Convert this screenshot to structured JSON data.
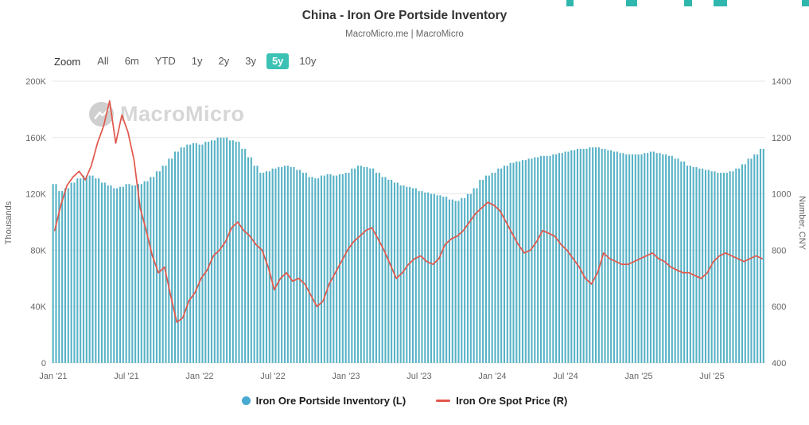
{
  "header": {
    "title": "China - Iron Ore Portside Inventory",
    "subtitle": "MacroMicro.me | MacroMicro"
  },
  "toolbar": {
    "zoom_label": "Zoom",
    "ranges": [
      "All",
      "6m",
      "YTD",
      "1y",
      "2y",
      "3y",
      "5y",
      "10y"
    ],
    "selected": "5y",
    "selected_bg": "#3cc2b5"
  },
  "watermark": {
    "text": "MacroMicro"
  },
  "legend": [
    {
      "label": "Iron Ore Portside Inventory (L)",
      "marker": "circle",
      "color": "#48a9d1"
    },
    {
      "label": "Iron Ore Spot Price (R)",
      "marker": "line",
      "color": "#e2564a"
    }
  ],
  "chart_data": {
    "type": "bar",
    "title": "China - Iron Ore Portside Inventory",
    "x_unit": "semi-monthly samples, Jan 2021 - Nov 2025",
    "x_ticks": [
      {
        "label": "Jan '21",
        "index": 0
      },
      {
        "label": "Jul '21",
        "index": 12
      },
      {
        "label": "Jan '22",
        "index": 24
      },
      {
        "label": "Jul '22",
        "index": 36
      },
      {
        "label": "Jan '23",
        "index": 48
      },
      {
        "label": "Jul '23",
        "index": 60
      },
      {
        "label": "Jan '24",
        "index": 72
      },
      {
        "label": "Jul '24",
        "index": 84
      },
      {
        "label": "Jan '25",
        "index": 96
      },
      {
        "label": "Jul '25",
        "index": 108
      }
    ],
    "y_left": {
      "title": "Thousands",
      "min": 0,
      "max": 200,
      "ticks": [
        "0",
        "40K",
        "80K",
        "120K",
        "160K",
        "200K"
      ]
    },
    "y_right": {
      "title": "Number, CNY",
      "min": 400,
      "max": 1400,
      "ticks": [
        "400",
        "600",
        "800",
        "1000",
        "1200",
        "1400"
      ]
    },
    "grid": true,
    "legend_position": "bottom",
    "series": [
      {
        "name": "Iron Ore Portside Inventory (L)",
        "type": "column",
        "axis": "left",
        "unit": "thousands",
        "color": "#58b2c6",
        "values": [
          127,
          122,
          124,
          128,
          131,
          133,
          133,
          131,
          128,
          126,
          124,
          125,
          127,
          126,
          127,
          129,
          132,
          136,
          140,
          145,
          150,
          153,
          155,
          156,
          155,
          157,
          158,
          160,
          160,
          158,
          157,
          152,
          146,
          140,
          135,
          136,
          138,
          139,
          140,
          139,
          137,
          135,
          132,
          131,
          133,
          134,
          133,
          134,
          135,
          138,
          140,
          139,
          138,
          135,
          132,
          130,
          128,
          126,
          125,
          124,
          122,
          121,
          120,
          119,
          118,
          116,
          115,
          117,
          120,
          124,
          130,
          133,
          135,
          138,
          140,
          142,
          143,
          144,
          145,
          146,
          147,
          147,
          148,
          149,
          150,
          151,
          152,
          152,
          153,
          153,
          152,
          151,
          150,
          149,
          148,
          148,
          148,
          149,
          150,
          149,
          148,
          147,
          145,
          143,
          140,
          139,
          138,
          137,
          136,
          135,
          135,
          136,
          138,
          141,
          145,
          148,
          152
        ]
      },
      {
        "name": "Iron Ore Spot Price (R)",
        "type": "line",
        "axis": "right",
        "unit": "CNY",
        "color": "#e2564a",
        "values": [
          870,
          960,
          1030,
          1060,
          1080,
          1050,
          1100,
          1180,
          1240,
          1330,
          1180,
          1280,
          1220,
          1120,
          950,
          870,
          780,
          720,
          740,
          640,
          545,
          560,
          620,
          650,
          700,
          730,
          780,
          800,
          830,
          880,
          900,
          870,
          850,
          820,
          800,
          740,
          660,
          700,
          720,
          690,
          700,
          680,
          640,
          600,
          620,
          680,
          720,
          760,
          800,
          830,
          850,
          870,
          880,
          840,
          800,
          750,
          700,
          720,
          750,
          770,
          780,
          760,
          750,
          770,
          820,
          840,
          850,
          870,
          900,
          930,
          950,
          970,
          960,
          940,
          900,
          860,
          820,
          790,
          800,
          830,
          870,
          860,
          850,
          820,
          800,
          770,
          740,
          700,
          680,
          720,
          790,
          770,
          760,
          750,
          750,
          760,
          770,
          780,
          790,
          770,
          760,
          740,
          730,
          720,
          720,
          710,
          700,
          720,
          760,
          780,
          790,
          780,
          770,
          760,
          770,
          780,
          770
        ]
      }
    ]
  }
}
